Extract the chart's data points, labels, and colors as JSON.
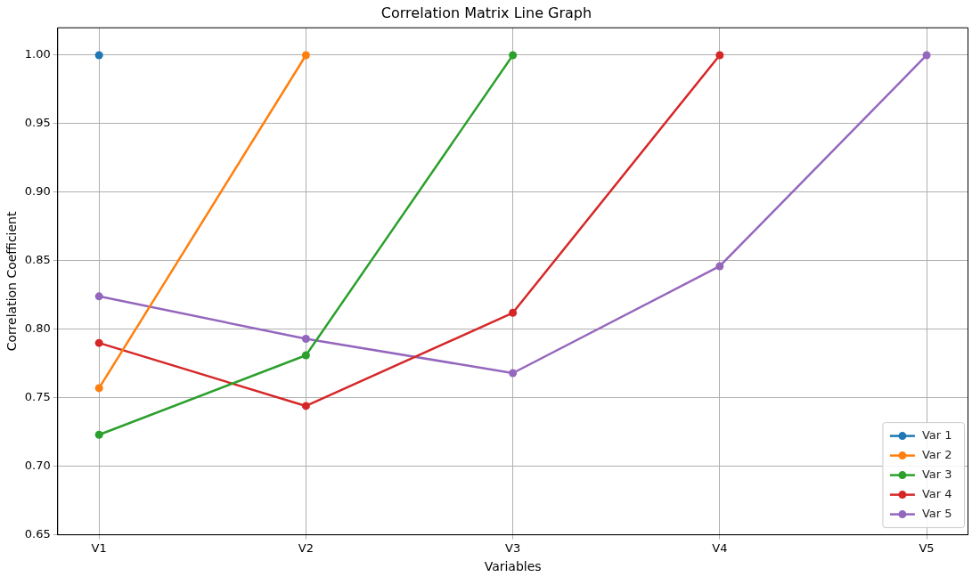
{
  "chart_data": {
    "type": "line",
    "title": "Correlation Matrix Line Graph",
    "xlabel": "Variables",
    "ylabel": "Correlation Coefficient",
    "categories": [
      "V1",
      "V2",
      "V3",
      "V4",
      "V5"
    ],
    "series": [
      {
        "name": "Var 1",
        "color": "#1f77b4",
        "values": [
          1.0,
          null,
          null,
          null,
          null
        ]
      },
      {
        "name": "Var 2",
        "color": "#ff7f0e",
        "values": [
          0.757,
          1.0,
          null,
          null,
          null
        ]
      },
      {
        "name": "Var 3",
        "color": "#2ca02c",
        "values": [
          0.723,
          0.781,
          1.0,
          null,
          null
        ]
      },
      {
        "name": "Var 4",
        "color": "#d62728",
        "values": [
          0.79,
          0.744,
          0.812,
          1.0,
          null
        ]
      },
      {
        "name": "Var 5",
        "color": "#9467bd",
        "values": [
          0.824,
          0.793,
          0.768,
          0.846,
          1.0
        ]
      }
    ],
    "ylim": [
      0.65,
      1.02
    ],
    "yticks": [
      {
        "value": 0.65,
        "label": "0.65"
      },
      {
        "value": 0.7,
        "label": "0.70"
      },
      {
        "value": 0.75,
        "label": "0.75"
      },
      {
        "value": 0.8,
        "label": "0.80"
      },
      {
        "value": 0.85,
        "label": "0.85"
      },
      {
        "value": 0.9,
        "label": "0.90"
      },
      {
        "value": 0.95,
        "label": "0.95"
      },
      {
        "value": 1.0,
        "label": "1.00"
      }
    ],
    "grid": true,
    "legend": "bottom right",
    "marker": "circle",
    "line_style": "solid"
  }
}
